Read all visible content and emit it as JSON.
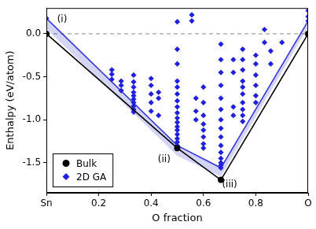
{
  "chart_data": {
    "type": "scatter",
    "x_label": "O fraction",
    "y_label": "Enthalpy (eV/atom)",
    "xlim": [
      0,
      1
    ],
    "ylim": [
      -1.85,
      0.3
    ],
    "xticks": [
      {
        "value": 0,
        "label": "Sn"
      },
      0.2,
      0.4,
      0.6,
      0.8,
      {
        "value": 1,
        "label": "O"
      }
    ],
    "yticks": [
      {
        "value": -1.5,
        "label": "-1.5"
      },
      {
        "value": -1,
        "label": "-1.0"
      },
      {
        "value": -0.5,
        "label": "-0.5"
      },
      {
        "value": 0,
        "label": "0.0"
      }
    ],
    "grid": false,
    "legend": "lower left",
    "reference_lines": [
      0
    ],
    "series": [
      {
        "color": "#3a3ad6",
        "line_style": "solid",
        "x": [
          0,
          0.5,
          0.6667,
          1
        ],
        "values": [
          0.18,
          -1.3,
          -1.56,
          0.15
        ],
        "band_lower": [
          0.06,
          -1.42,
          -1.66,
          0.08
        ]
      },
      {
        "name": "Bulk",
        "color": "#000000",
        "marker": "circle",
        "line_style": "solid",
        "x": [
          0,
          0.5,
          0.6667,
          1
        ],
        "values": [
          0,
          -1.33,
          -1.7,
          0
        ]
      },
      {
        "name": "2D GA",
        "color": "#2020dc",
        "marker": "diamond",
        "x": [
          0,
          0.25,
          0.25,
          0.25,
          0.2857,
          0.2857,
          0.2857,
          0.3333,
          0.3333,
          0.3333,
          0.3333,
          0.3333,
          0.3333,
          0.3333,
          0.3333,
          0.3333,
          0.3333,
          0.4,
          0.4,
          0.4,
          0.4,
          0.4,
          0.4286,
          0.4286,
          0.4286,
          0.5,
          0.5,
          0.5,
          0.5,
          0.5,
          0.5,
          0.5,
          0.5,
          0.5,
          0.5,
          0.5,
          0.5,
          0.5,
          0.5,
          0.5,
          0.5,
          0.5,
          0.5556,
          0.5556,
          0.5714,
          0.5714,
          0.5714,
          0.6,
          0.6,
          0.6,
          0.6,
          0.6,
          0.6,
          0.6,
          0.6,
          0.6667,
          0.6667,
          0.6667,
          0.6667,
          0.6667,
          0.6667,
          0.6667,
          0.6667,
          0.6667,
          0.6667,
          0.6667,
          0.6667,
          0.6667,
          0.6667,
          0.6667,
          0.7143,
          0.7143,
          0.7143,
          0.7143,
          0.75,
          0.75,
          0.75,
          0.75,
          0.75,
          0.75,
          0.75,
          0.75,
          0.75,
          0.75,
          0.8,
          0.8,
          0.8,
          0.8,
          0.8,
          0.8,
          0.8333,
          0.8333,
          0.8571,
          0.8571,
          0.9,
          1,
          1,
          1
        ],
        "values": [
          0.18,
          -0.42,
          -0.47,
          -0.53,
          -0.55,
          -0.6,
          -0.66,
          -0.48,
          -0.56,
          -0.62,
          -0.68,
          -0.72,
          -0.76,
          -0.8,
          -0.84,
          -0.88,
          -0.91,
          -0.52,
          -0.6,
          -0.7,
          -0.8,
          -0.9,
          -0.68,
          -0.75,
          -0.95,
          0.14,
          -0.18,
          -0.35,
          -0.55,
          -0.62,
          -0.7,
          -0.78,
          -0.85,
          -0.92,
          -0.98,
          -1.03,
          -1.08,
          -1.12,
          -1.17,
          -1.22,
          -1.26,
          -1.3,
          0.22,
          0.15,
          -0.75,
          -0.9,
          -1.0,
          -0.62,
          -0.8,
          -0.95,
          -1.05,
          -1.12,
          -1.2,
          -1.28,
          -1.33,
          -0.12,
          -0.3,
          -0.45,
          -0.6,
          -0.75,
          -0.88,
          -1.0,
          -1.1,
          -1.2,
          -1.3,
          -1.38,
          -1.45,
          -1.5,
          -1.53,
          -1.56,
          -0.3,
          -0.45,
          -0.85,
          -0.95,
          -0.18,
          -0.3,
          -0.42,
          -0.55,
          -0.62,
          -0.7,
          -0.8,
          -0.88,
          -0.95,
          -1.02,
          -0.25,
          -0.35,
          -0.48,
          -0.6,
          -0.72,
          -0.8,
          0.05,
          -0.1,
          -0.2,
          -0.35,
          -0.1,
          0.27,
          0.2,
          0.15
        ]
      }
    ],
    "annotations": [
      {
        "text": "(i)",
        "x": 0.06,
        "y": 0.17
      },
      {
        "text": "(ii)",
        "x": 0.45,
        "y": -1.46
      },
      {
        "text": "(iii)",
        "x": 0.7,
        "y": -1.76
      }
    ]
  }
}
